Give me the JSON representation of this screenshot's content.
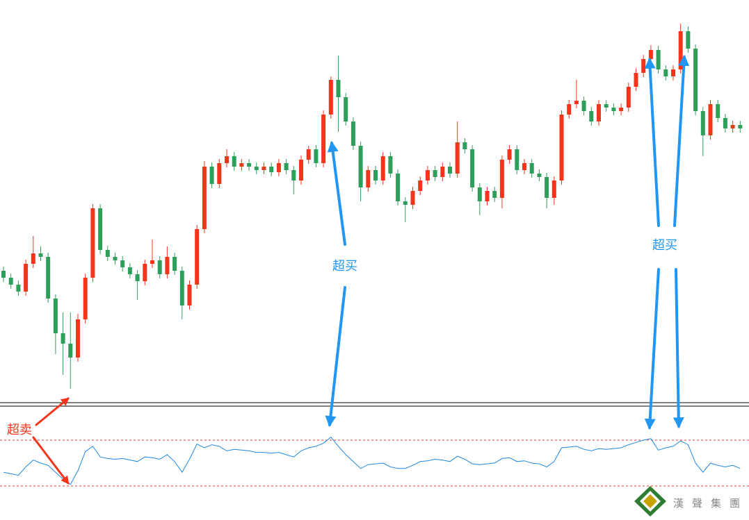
{
  "chart_data": [
    {
      "type": "candlestick",
      "up_color": "#f5341b",
      "down_color": "#2e9e5b",
      "ylim": [
        20,
        600
      ],
      "open": [
        210,
        200,
        190,
        180,
        220,
        235,
        230,
        170,
        120,
        105,
        85,
        140,
        200,
        300,
        240,
        230,
        225,
        215,
        205,
        195,
        220,
        225,
        205,
        230,
        210,
        160,
        190,
        270,
        360,
        335,
        365,
        375,
        360,
        365,
        360,
        355,
        360,
        352,
        365,
        355,
        340,
        370,
        385,
        365,
        435,
        485,
        460,
        425,
        390,
        330,
        355,
        340,
        375,
        350,
        310,
        305,
        325,
        340,
        355,
        345,
        360,
        350,
        395,
        385,
        330,
        310,
        325,
        315,
        370,
        385,
        355,
        365,
        350,
        345,
        315,
        340,
        435,
        450,
        455,
        440,
        425,
        450,
        445,
        440,
        445,
        475,
        495,
        515,
        528,
        500,
        490,
        500,
        555,
        530,
        440,
        405,
        450,
        430,
        415,
        420
      ],
      "high": [
        216,
        206,
        196,
        226,
        260,
        245,
        236,
        176,
        150,
        150,
        148,
        206,
        306,
        306,
        246,
        236,
        231,
        221,
        211,
        226,
        255,
        231,
        245,
        236,
        216,
        196,
        276,
        368,
        366,
        371,
        385,
        381,
        371,
        371,
        366,
        366,
        366,
        371,
        371,
        361,
        376,
        390,
        391,
        441,
        490,
        520,
        466,
        431,
        396,
        361,
        361,
        381,
        381,
        356,
        316,
        331,
        346,
        361,
        361,
        366,
        366,
        425,
        401,
        391,
        336,
        331,
        331,
        376,
        391,
        391,
        371,
        371,
        356,
        351,
        346,
        441,
        456,
        485,
        461,
        446,
        456,
        456,
        451,
        451,
        481,
        501,
        521,
        535,
        534,
        506,
        506,
        566,
        562,
        536,
        446,
        456,
        456,
        436,
        426,
        426
      ],
      "low": [
        194,
        184,
        174,
        174,
        214,
        224,
        164,
        90,
        60,
        40,
        79,
        134,
        194,
        234,
        224,
        219,
        209,
        199,
        168,
        189,
        214,
        199,
        199,
        204,
        140,
        154,
        184,
        264,
        329,
        329,
        359,
        354,
        354,
        354,
        349,
        349,
        346,
        346,
        349,
        320,
        334,
        364,
        359,
        359,
        429,
        410,
        419,
        384,
        310,
        324,
        334,
        334,
        344,
        304,
        280,
        299,
        319,
        334,
        339,
        339,
        344,
        344,
        379,
        324,
        290,
        304,
        309,
        300,
        364,
        349,
        349,
        344,
        339,
        300,
        305,
        334,
        429,
        444,
        434,
        419,
        419,
        439,
        434,
        434,
        439,
        469,
        489,
        509,
        494,
        484,
        484,
        494,
        524,
        434,
        375,
        399,
        424,
        409,
        409,
        409
      ],
      "close": [
        200,
        190,
        180,
        220,
        235,
        230,
        170,
        120,
        105,
        85,
        140,
        200,
        300,
        240,
        230,
        225,
        215,
        205,
        195,
        220,
        225,
        205,
        230,
        210,
        160,
        190,
        270,
        360,
        335,
        365,
        375,
        360,
        365,
        360,
        355,
        360,
        352,
        365,
        355,
        340,
        370,
        385,
        365,
        435,
        485,
        460,
        425,
        390,
        330,
        355,
        340,
        375,
        350,
        310,
        305,
        325,
        340,
        355,
        345,
        360,
        350,
        395,
        385,
        330,
        310,
        325,
        315,
        370,
        385,
        355,
        365,
        350,
        345,
        315,
        340,
        435,
        450,
        455,
        440,
        425,
        450,
        445,
        440,
        445,
        475,
        495,
        515,
        528,
        500,
        490,
        500,
        555,
        530,
        440,
        405,
        450,
        430,
        415,
        420,
        415
      ]
    },
    {
      "type": "line",
      "color": "#1e88e5",
      "ylim": [
        0,
        100
      ],
      "levels": [
        20,
        80
      ],
      "level_color": "#e53935",
      "values": [
        38,
        36,
        34,
        45,
        54,
        50,
        47,
        38,
        29,
        22,
        40,
        65,
        72,
        58,
        56,
        55,
        56,
        54,
        52,
        58,
        57,
        55,
        61,
        52,
        38,
        55,
        75,
        70,
        74,
        72,
        66,
        68,
        67,
        66,
        64,
        64,
        63,
        64,
        61,
        58,
        66,
        70,
        72,
        76,
        84,
        72,
        61,
        52,
        43,
        48,
        49,
        50,
        45,
        43,
        43,
        47,
        52,
        53,
        55,
        54,
        52,
        59,
        55,
        49,
        48,
        49,
        50,
        56,
        57,
        52,
        53,
        50,
        49,
        45,
        52,
        70,
        71,
        72,
        68,
        66,
        69,
        68,
        69,
        70,
        74,
        77,
        80,
        82,
        67,
        70,
        72,
        79,
        74,
        50,
        38,
        50,
        47,
        45,
        47,
        43
      ]
    }
  ],
  "annotations": [
    {
      "text": "超卖"
    },
    {
      "text": "超买"
    },
    {
      "text": "超买"
    }
  ],
  "logo": "漢聲集團"
}
